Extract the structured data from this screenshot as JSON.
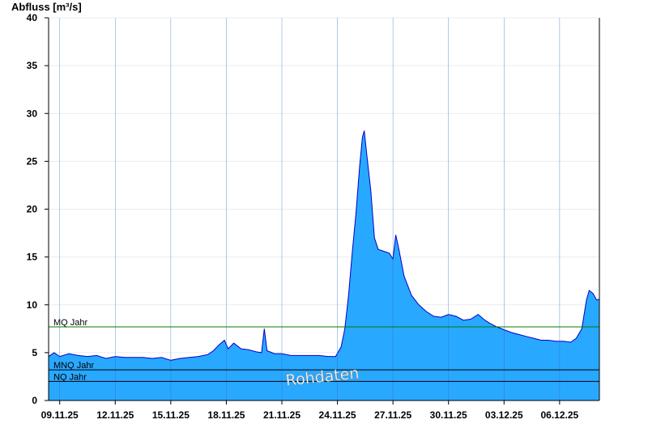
{
  "chart_data": {
    "type": "area",
    "ylabel": "Abfluss [m³/s]",
    "ylim": [
      0,
      40
    ],
    "yticks": [
      0,
      5,
      10,
      15,
      20,
      25,
      30,
      35,
      40
    ],
    "x_domain_days": [
      8.4,
      38.15
    ],
    "date_ticks": [
      {
        "day": 9,
        "label": "09.11.25"
      },
      {
        "day": 12,
        "label": "12.11.25"
      },
      {
        "day": 15,
        "label": "15.11.25"
      },
      {
        "day": 18,
        "label": "18.11.25"
      },
      {
        "day": 21,
        "label": "21.11.25"
      },
      {
        "day": 24,
        "label": "24.11.25"
      },
      {
        "day": 27,
        "label": "27.11.25"
      },
      {
        "day": 30,
        "label": "30.11.25"
      },
      {
        "day": 33,
        "label": "03.12.25"
      },
      {
        "day": 36,
        "label": "06.12.25"
      }
    ],
    "grid": "vertical-at-date-ticks, horizontal-light",
    "series": [
      {
        "fill_color": "#29a8ff",
        "line_color": "#0000cc",
        "points": [
          [
            8.4,
            4.6
          ],
          [
            8.7,
            5.0
          ],
          [
            9.0,
            4.6
          ],
          [
            9.5,
            4.9
          ],
          [
            10.0,
            4.7
          ],
          [
            10.5,
            4.6
          ],
          [
            11.0,
            4.7
          ],
          [
            11.5,
            4.4
          ],
          [
            12.0,
            4.6
          ],
          [
            12.5,
            4.5
          ],
          [
            13.0,
            4.5
          ],
          [
            13.5,
            4.5
          ],
          [
            14.0,
            4.4
          ],
          [
            14.5,
            4.5
          ],
          [
            15.0,
            4.2
          ],
          [
            15.5,
            4.4
          ],
          [
            16.0,
            4.5
          ],
          [
            16.5,
            4.6
          ],
          [
            17.0,
            4.8
          ],
          [
            17.3,
            5.2
          ],
          [
            17.6,
            5.8
          ],
          [
            17.9,
            6.3
          ],
          [
            18.1,
            5.4
          ],
          [
            18.4,
            6.0
          ],
          [
            18.8,
            5.4
          ],
          [
            19.2,
            5.3
          ],
          [
            19.6,
            5.1
          ],
          [
            19.9,
            5.0
          ],
          [
            20.05,
            7.5
          ],
          [
            20.2,
            5.2
          ],
          [
            20.6,
            4.9
          ],
          [
            21.0,
            4.9
          ],
          [
            21.5,
            4.7
          ],
          [
            22.0,
            4.7
          ],
          [
            22.5,
            4.7
          ],
          [
            23.0,
            4.7
          ],
          [
            23.5,
            4.6
          ],
          [
            23.9,
            4.6
          ],
          [
            24.2,
            5.6
          ],
          [
            24.4,
            7.5
          ],
          [
            24.6,
            11.0
          ],
          [
            24.8,
            15.5
          ],
          [
            25.0,
            19.5
          ],
          [
            25.2,
            24.5
          ],
          [
            25.35,
            27.5
          ],
          [
            25.45,
            28.2
          ],
          [
            25.6,
            25.5
          ],
          [
            25.8,
            22.0
          ],
          [
            26.0,
            17.0
          ],
          [
            26.2,
            15.8
          ],
          [
            26.5,
            15.6
          ],
          [
            26.8,
            15.4
          ],
          [
            27.0,
            14.8
          ],
          [
            27.15,
            17.3
          ],
          [
            27.3,
            16.0
          ],
          [
            27.6,
            13.0
          ],
          [
            28.0,
            11.0
          ],
          [
            28.4,
            10.0
          ],
          [
            28.8,
            9.3
          ],
          [
            29.2,
            8.8
          ],
          [
            29.6,
            8.7
          ],
          [
            30.0,
            9.0
          ],
          [
            30.4,
            8.8
          ],
          [
            30.8,
            8.4
          ],
          [
            31.2,
            8.5
          ],
          [
            31.6,
            9.0
          ],
          [
            31.9,
            8.5
          ],
          [
            32.2,
            8.1
          ],
          [
            32.6,
            7.7
          ],
          [
            33.0,
            7.4
          ],
          [
            33.4,
            7.1
          ],
          [
            33.8,
            6.9
          ],
          [
            34.2,
            6.7
          ],
          [
            34.6,
            6.5
          ],
          [
            35.0,
            6.3
          ],
          [
            35.4,
            6.3
          ],
          [
            35.8,
            6.2
          ],
          [
            36.2,
            6.2
          ],
          [
            36.6,
            6.1
          ],
          [
            36.9,
            6.5
          ],
          [
            37.2,
            7.5
          ],
          [
            37.45,
            10.5
          ],
          [
            37.6,
            11.5
          ],
          [
            37.8,
            11.2
          ],
          [
            38.0,
            10.5
          ],
          [
            38.15,
            10.6
          ]
        ]
      }
    ],
    "reference_lines": [
      {
        "label": "MQ Jahr",
        "value": 7.7,
        "color": "#007a00"
      },
      {
        "label": "MNQ Jahr",
        "value": 3.2,
        "color": "#000000"
      },
      {
        "label": "NQ Jahr",
        "value": 2.0,
        "color": "#000000"
      }
    ],
    "watermark": "Rohdaten"
  }
}
